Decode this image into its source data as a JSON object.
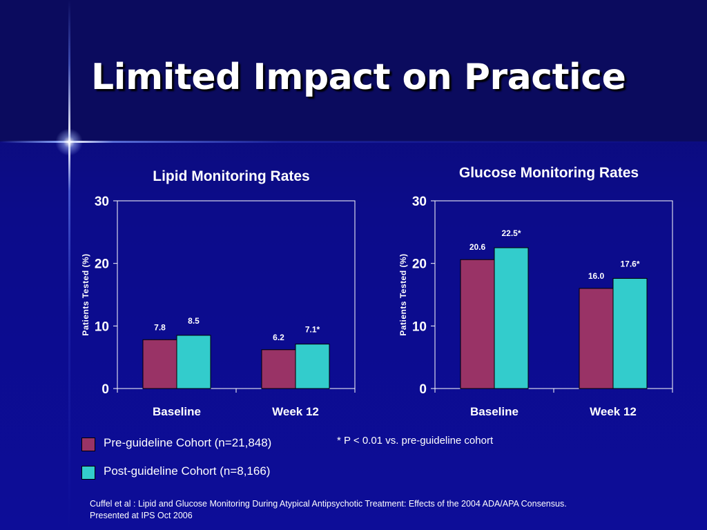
{
  "slide": {
    "title": "Limited Impact on Practice"
  },
  "colors": {
    "pre": "#993366",
    "post": "#33cccc",
    "axis": "#ffffff"
  },
  "chart_data": [
    {
      "type": "bar",
      "title": "Lipid Monitoring Rates",
      "ylabel": "Patients Tested (%)",
      "xlabel": "",
      "ylim": [
        0,
        30
      ],
      "yticks": [
        "0",
        "10",
        "20",
        "30"
      ],
      "categories": [
        "Baseline",
        "Week 12"
      ],
      "series": [
        {
          "name": "Pre-guideline Cohort (n=21,848)",
          "values": [
            7.8,
            6.2
          ],
          "labels": [
            "7.8",
            "6.2"
          ]
        },
        {
          "name": "Post-guideline Cohort (n=8,166)",
          "values": [
            8.5,
            7.1
          ],
          "labels": [
            "8.5",
            "7.1*"
          ]
        }
      ]
    },
    {
      "type": "bar",
      "title": "Glucose Monitoring Rates",
      "ylabel": "Patients Tested (%)",
      "xlabel": "",
      "ylim": [
        0,
        30
      ],
      "yticks": [
        "0",
        "10",
        "20",
        "30"
      ],
      "categories": [
        "Baseline",
        "Week 12"
      ],
      "series": [
        {
          "name": "Pre-guideline Cohort (n=21,848)",
          "values": [
            20.6,
            16.0
          ],
          "labels": [
            "20.6",
            "16.0"
          ]
        },
        {
          "name": "Post-guideline Cohort (n=8,166)",
          "values": [
            22.5,
            17.6
          ],
          "labels": [
            "22.5*",
            "17.6*"
          ]
        }
      ]
    }
  ],
  "legend": {
    "pre_label": "Pre-guideline Cohort (n=21,848)",
    "post_label": "Post-guideline Cohort (n=8,166)"
  },
  "footnote": "* P < 0.01 vs. pre-guideline cohort",
  "citation": {
    "line1": "Cuffel et al : Lipid and Glucose Monitoring During Atypical Antipsychotic Treatment: Effects of the 2004 ADA/APA Consensus.",
    "line2": "Presented at IPS Oct 2006"
  }
}
